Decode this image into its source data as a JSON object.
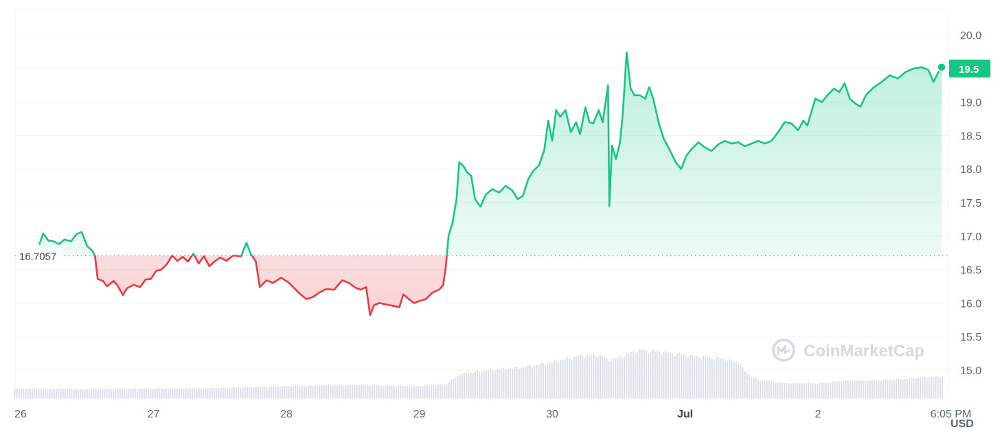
{
  "chart_data": {
    "type": "line",
    "xlabel": "",
    "ylabel": "",
    "y_unit": "USD",
    "ylim": [
      14.7,
      20.4
    ],
    "y_ticks": [
      15.0,
      15.5,
      16.0,
      16.5,
      17.0,
      17.5,
      18.0,
      18.5,
      19.0,
      19.5,
      20.0
    ],
    "y_tick_labels": [
      "15.0",
      "15.5",
      "16.0",
      "16.5",
      "17.0",
      "17.5",
      "18.0",
      "18.5",
      "19.0",
      "19.5",
      "20.0"
    ],
    "x_range_days": [
      26,
      33.9
    ],
    "x_ticks": [
      {
        "day": 26,
        "label": "26",
        "bold": false
      },
      {
        "day": 27,
        "label": "27",
        "bold": false
      },
      {
        "day": 28,
        "label": "28",
        "bold": false
      },
      {
        "day": 29,
        "label": "29",
        "bold": false
      },
      {
        "day": 30,
        "label": "30",
        "bold": false
      },
      {
        "day": 31,
        "label": "Jul",
        "bold": true
      },
      {
        "day": 32,
        "label": "2",
        "bold": false
      },
      {
        "day": 33,
        "label": "6:05 PM",
        "bold": false
      }
    ],
    "baseline": {
      "value": 16.7057,
      "label": "16.7057"
    },
    "last_value": {
      "value": 19.5,
      "label": "19.5"
    },
    "colors": {
      "up": "#16c784",
      "down": "#ea3943",
      "grid": "#eff2f5",
      "volume": "#dde1ea",
      "label_bg": "#16c784"
    },
    "grid": true,
    "watermark": "CoinMarketCap",
    "series": [
      {
        "points": [
          [
            26.14,
            16.87
          ],
          [
            26.17,
            17.04
          ],
          [
            26.21,
            16.93
          ],
          [
            26.25,
            16.92
          ],
          [
            26.29,
            16.88
          ],
          [
            26.33,
            16.95
          ],
          [
            26.38,
            16.92
          ],
          [
            26.42,
            17.03
          ],
          [
            26.46,
            17.06
          ],
          [
            26.5,
            16.85
          ],
          [
            26.54,
            16.78
          ],
          [
            26.56,
            16.7
          ],
          [
            26.58,
            16.36
          ],
          [
            26.62,
            16.33
          ],
          [
            26.65,
            16.25
          ],
          [
            26.7,
            16.33
          ],
          [
            26.73,
            16.26
          ],
          [
            26.77,
            16.12
          ],
          [
            26.8,
            16.22
          ],
          [
            26.85,
            16.27
          ],
          [
            26.9,
            16.24
          ],
          [
            26.94,
            16.35
          ],
          [
            26.98,
            16.36
          ],
          [
            27.02,
            16.48
          ],
          [
            27.06,
            16.5
          ],
          [
            27.1,
            16.58
          ],
          [
            27.14,
            16.71
          ],
          [
            27.18,
            16.63
          ],
          [
            27.22,
            16.69
          ],
          [
            27.26,
            16.62
          ],
          [
            27.3,
            16.74
          ],
          [
            27.34,
            16.59
          ],
          [
            27.38,
            16.7
          ],
          [
            27.42,
            16.55
          ],
          [
            27.46,
            16.62
          ],
          [
            27.5,
            16.68
          ],
          [
            27.55,
            16.63
          ],
          [
            27.6,
            16.71
          ],
          [
            27.66,
            16.7
          ],
          [
            27.7,
            16.9
          ],
          [
            27.73,
            16.74
          ],
          [
            27.77,
            16.62
          ],
          [
            27.8,
            16.24
          ],
          [
            27.85,
            16.34
          ],
          [
            27.9,
            16.3
          ],
          [
            27.96,
            16.38
          ],
          [
            28.02,
            16.3
          ],
          [
            28.06,
            16.22
          ],
          [
            28.1,
            16.14
          ],
          [
            28.15,
            16.06
          ],
          [
            28.2,
            16.09
          ],
          [
            28.25,
            16.16
          ],
          [
            28.3,
            16.21
          ],
          [
            28.36,
            16.2
          ],
          [
            28.42,
            16.34
          ],
          [
            28.47,
            16.3
          ],
          [
            28.52,
            16.23
          ],
          [
            28.56,
            16.2
          ],
          [
            28.6,
            16.24
          ],
          [
            28.63,
            15.82
          ],
          [
            28.66,
            15.97
          ],
          [
            28.7,
            16.0
          ],
          [
            28.75,
            15.98
          ],
          [
            28.8,
            15.96
          ],
          [
            28.85,
            15.94
          ],
          [
            28.88,
            16.13
          ],
          [
            28.92,
            16.06
          ],
          [
            28.96,
            16.0
          ],
          [
            29.0,
            16.03
          ],
          [
            29.05,
            16.06
          ],
          [
            29.1,
            16.16
          ],
          [
            29.15,
            16.2
          ],
          [
            29.18,
            16.27
          ],
          [
            29.2,
            16.55
          ],
          [
            29.22,
            17.0
          ],
          [
            29.25,
            17.2
          ],
          [
            29.28,
            17.55
          ],
          [
            29.3,
            18.1
          ],
          [
            29.33,
            18.05
          ],
          [
            29.36,
            17.95
          ],
          [
            29.39,
            17.9
          ],
          [
            29.42,
            17.55
          ],
          [
            29.46,
            17.44
          ],
          [
            29.5,
            17.62
          ],
          [
            29.55,
            17.7
          ],
          [
            29.6,
            17.65
          ],
          [
            29.65,
            17.75
          ],
          [
            29.7,
            17.68
          ],
          [
            29.74,
            17.55
          ],
          [
            29.78,
            17.6
          ],
          [
            29.82,
            17.85
          ],
          [
            29.86,
            17.98
          ],
          [
            29.9,
            18.05
          ],
          [
            29.94,
            18.28
          ],
          [
            29.97,
            18.72
          ],
          [
            30.0,
            18.42
          ],
          [
            30.03,
            18.88
          ],
          [
            30.06,
            18.78
          ],
          [
            30.1,
            18.88
          ],
          [
            30.14,
            18.55
          ],
          [
            30.18,
            18.7
          ],
          [
            30.21,
            18.52
          ],
          [
            30.25,
            18.92
          ],
          [
            30.28,
            18.7
          ],
          [
            30.31,
            18.68
          ],
          [
            30.35,
            18.88
          ],
          [
            30.38,
            18.7
          ],
          [
            30.42,
            19.25
          ],
          [
            30.43,
            17.45
          ],
          [
            30.45,
            18.35
          ],
          [
            30.48,
            18.15
          ],
          [
            30.51,
            18.4
          ],
          [
            30.53,
            18.8
          ],
          [
            30.56,
            19.74
          ],
          [
            30.59,
            19.2
          ],
          [
            30.62,
            19.1
          ],
          [
            30.66,
            19.1
          ],
          [
            30.7,
            19.05
          ],
          [
            30.73,
            19.22
          ],
          [
            30.76,
            19.05
          ],
          [
            30.8,
            18.7
          ],
          [
            30.84,
            18.45
          ],
          [
            30.88,
            18.3
          ],
          [
            30.93,
            18.1
          ],
          [
            30.97,
            18.0
          ],
          [
            31.01,
            18.2
          ],
          [
            31.05,
            18.3
          ],
          [
            31.1,
            18.4
          ],
          [
            31.15,
            18.32
          ],
          [
            31.2,
            18.27
          ],
          [
            31.25,
            18.37
          ],
          [
            31.3,
            18.42
          ],
          [
            31.35,
            18.38
          ],
          [
            31.4,
            18.4
          ],
          [
            31.45,
            18.34
          ],
          [
            31.5,
            18.38
          ],
          [
            31.55,
            18.42
          ],
          [
            31.6,
            18.38
          ],
          [
            31.65,
            18.42
          ],
          [
            31.7,
            18.55
          ],
          [
            31.75,
            18.7
          ],
          [
            31.8,
            18.68
          ],
          [
            31.85,
            18.58
          ],
          [
            31.89,
            18.72
          ],
          [
            31.92,
            18.65
          ],
          [
            31.95,
            18.85
          ],
          [
            31.98,
            19.05
          ],
          [
            32.03,
            19.0
          ],
          [
            32.07,
            19.1
          ],
          [
            32.12,
            19.2
          ],
          [
            32.16,
            19.15
          ],
          [
            32.2,
            19.28
          ],
          [
            32.24,
            19.05
          ],
          [
            32.28,
            18.98
          ],
          [
            32.32,
            18.93
          ],
          [
            32.36,
            19.1
          ],
          [
            32.42,
            19.22
          ],
          [
            32.48,
            19.3
          ],
          [
            32.54,
            19.4
          ],
          [
            32.6,
            19.35
          ],
          [
            32.66,
            19.45
          ],
          [
            32.72,
            19.5
          ],
          [
            32.78,
            19.52
          ],
          [
            32.83,
            19.48
          ],
          [
            32.87,
            19.3
          ],
          [
            32.9,
            19.42
          ],
          [
            32.93,
            19.52
          ]
        ]
      }
    ],
    "volume_envelope": [
      [
        25.95,
        0.16
      ],
      [
        26.5,
        0.15
      ],
      [
        27.0,
        0.16
      ],
      [
        27.5,
        0.17
      ],
      [
        28.0,
        0.2
      ],
      [
        28.5,
        0.22
      ],
      [
        29.0,
        0.2
      ],
      [
        29.2,
        0.24
      ],
      [
        29.3,
        0.4
      ],
      [
        29.5,
        0.46
      ],
      [
        29.8,
        0.52
      ],
      [
        30.0,
        0.6
      ],
      [
        30.2,
        0.7
      ],
      [
        30.35,
        0.72
      ],
      [
        30.42,
        0.62
      ],
      [
        30.5,
        0.68
      ],
      [
        30.65,
        0.8
      ],
      [
        30.85,
        0.76
      ],
      [
        31.05,
        0.7
      ],
      [
        31.3,
        0.65
      ],
      [
        31.4,
        0.58
      ],
      [
        31.45,
        0.42
      ],
      [
        31.55,
        0.3
      ],
      [
        31.75,
        0.25
      ],
      [
        32.0,
        0.25
      ],
      [
        32.2,
        0.29
      ],
      [
        32.5,
        0.3
      ],
      [
        32.7,
        0.33
      ],
      [
        32.93,
        0.36
      ]
    ]
  }
}
